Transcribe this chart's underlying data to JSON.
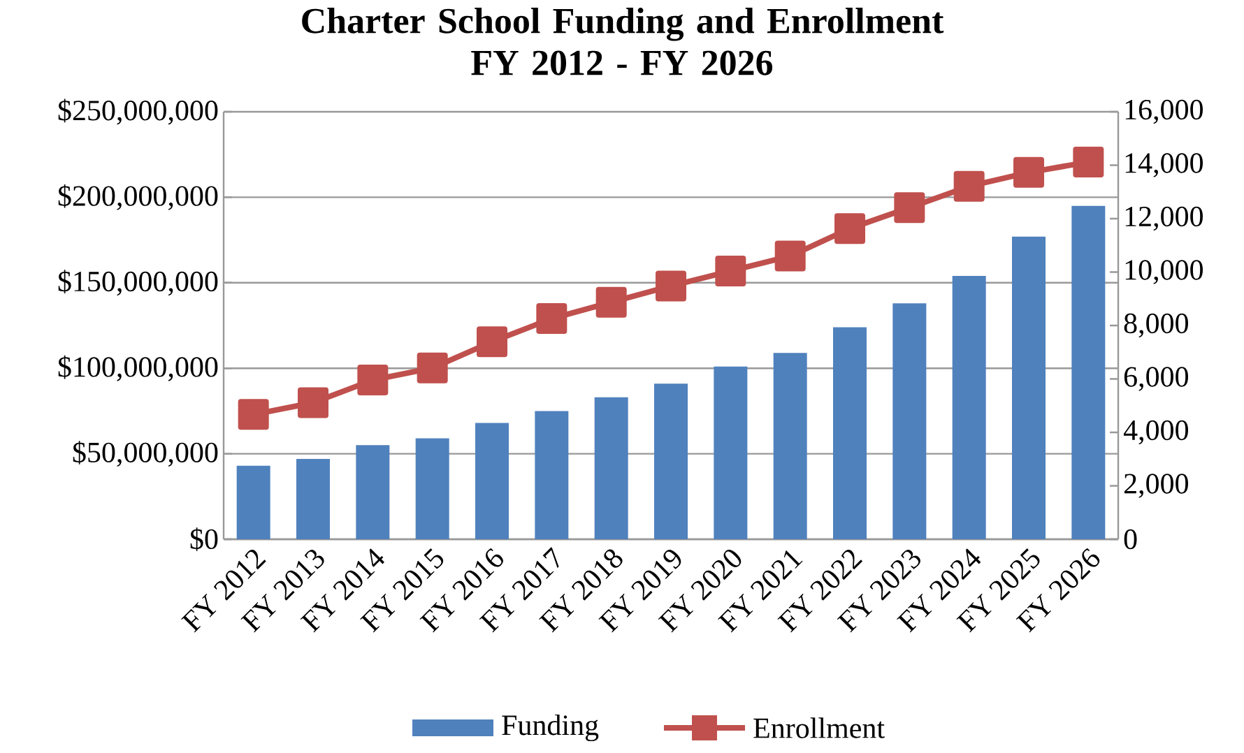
{
  "chart_data": {
    "type": "bar",
    "title": "Charter School Funding and Enrollment\nFY 2012 - FY 2026",
    "categories": [
      "FY 2012",
      "FY 2013",
      "FY 2014",
      "FY 2015",
      "FY 2016",
      "FY 2017",
      "FY 2018",
      "FY 2019",
      "FY 2020",
      "FY 2021",
      "FY 2022",
      "FY 2023",
      "FY 2024",
      "FY 2025",
      "FY 2026"
    ],
    "series": [
      {
        "name": "Funding",
        "color": "#4f81bd",
        "values": [
          43000000,
          47000000,
          55000000,
          59000000,
          68000000,
          75000000,
          83000000,
          91000000,
          101000000,
          109000000,
          124000000,
          138000000,
          154000000,
          177000000,
          195000000
        ]
      },
      {
        "name": "Enrollment",
        "type": "line",
        "axis": "y2",
        "color": "#c0504d",
        "marker": "square",
        "values": [
          4670,
          5110,
          5960,
          6410,
          7390,
          8260,
          8870,
          9480,
          10040,
          10600,
          11630,
          12410,
          13210,
          13730,
          14120
        ]
      }
    ],
    "ylim": [
      0,
      250000000
    ],
    "yticks": [
      {
        "value": 0,
        "label": "$0"
      },
      {
        "value": 50000000,
        "label": "$50,000,000"
      },
      {
        "value": 100000000,
        "label": "$100,000,000"
      },
      {
        "value": 150000000,
        "label": "$150,000,000"
      },
      {
        "value": 200000000,
        "label": "$200,000,000"
      },
      {
        "value": 250000000,
        "label": "$250,000,000"
      }
    ],
    "y2lim": [
      0,
      16000
    ],
    "y2ticks": [
      {
        "value": 0,
        "label": "0"
      },
      {
        "value": 2000,
        "label": "2,000"
      },
      {
        "value": 4000,
        "label": "4,000"
      },
      {
        "value": 6000,
        "label": "6,000"
      },
      {
        "value": 8000,
        "label": "8,000"
      },
      {
        "value": 10000,
        "label": "10,000"
      },
      {
        "value": 12000,
        "label": "12,000"
      },
      {
        "value": 14000,
        "label": "14,000"
      },
      {
        "value": 16000,
        "label": "16,000"
      }
    ],
    "grid": "y",
    "legend": "bottom"
  }
}
